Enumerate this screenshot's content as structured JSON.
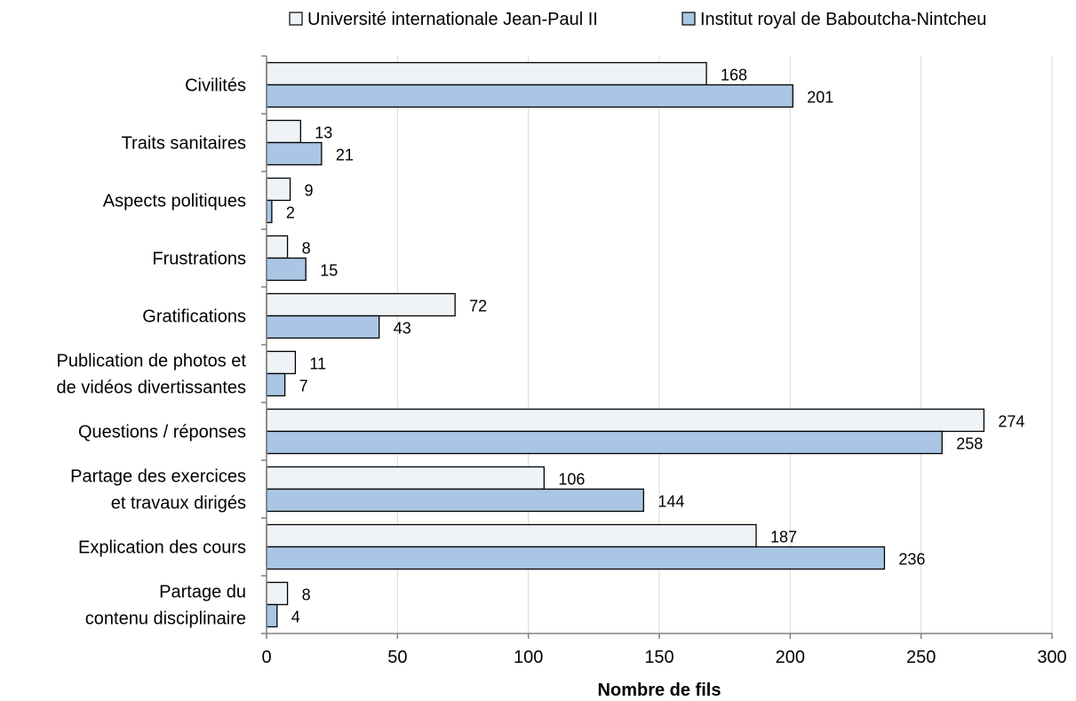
{
  "chart_data": {
    "type": "bar",
    "orientation": "horizontal",
    "categories": [
      [
        "Civilités"
      ],
      [
        "Traits sanitaires"
      ],
      [
        "Aspects politiques"
      ],
      [
        "Frustrations"
      ],
      [
        "Gratifications"
      ],
      [
        "Publication de photos et",
        "de vidéos divertissantes"
      ],
      [
        "Questions / réponses"
      ],
      [
        "Partage des exercices",
        "et travaux dirigés"
      ],
      [
        "Explication des cours"
      ],
      [
        "Partage du",
        "contenu disciplinaire"
      ]
    ],
    "series": [
      {
        "name": "Université internationale Jean-Paul II",
        "color": "#eef3f8",
        "values": [
          168,
          13,
          9,
          8,
          72,
          11,
          274,
          106,
          187,
          8
        ]
      },
      {
        "name": "Institut royal de Baboutcha-Nintcheu",
        "color": "#a9c6e4",
        "values": [
          201,
          21,
          2,
          15,
          43,
          7,
          258,
          144,
          236,
          4
        ]
      }
    ],
    "xlabel": "Nombre de fils",
    "xlim": [
      0,
      300
    ],
    "xticks": [
      0,
      50,
      100,
      150,
      200,
      250,
      300
    ],
    "grid": "vertical",
    "legend_position": "top"
  }
}
